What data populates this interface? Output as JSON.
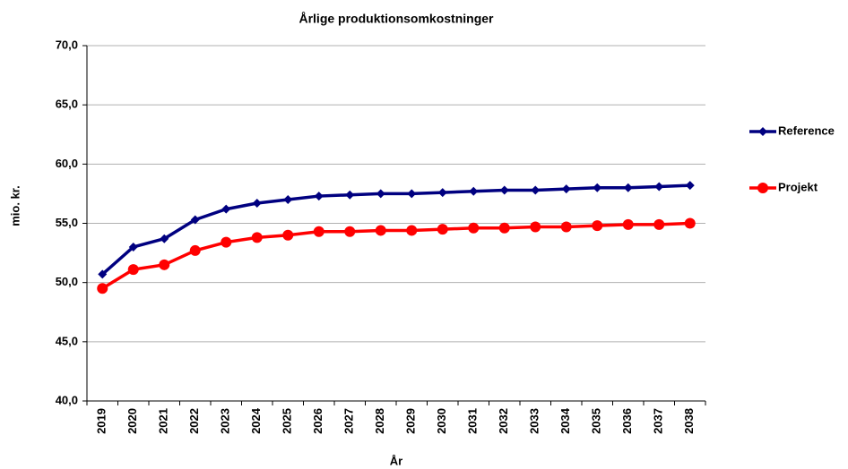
{
  "chart_data": {
    "type": "line",
    "title": "Årlige produktionsomkostninger",
    "x_label": "År",
    "y_label": "mio. kr.",
    "categories": [
      "2019",
      "2020",
      "2021",
      "2022",
      "2023",
      "2024",
      "2025",
      "2026",
      "2027",
      "2028",
      "2029",
      "2030",
      "2031",
      "2032",
      "2033",
      "2034",
      "2035",
      "2036",
      "2037",
      "2038"
    ],
    "series": [
      {
        "name": "Reference",
        "color": "#000080",
        "marker": "diamond",
        "values": [
          50.7,
          53.0,
          53.7,
          55.3,
          56.2,
          56.7,
          57.0,
          57.3,
          57.4,
          57.5,
          57.5,
          57.6,
          57.7,
          57.8,
          57.8,
          57.9,
          58.0,
          58.0,
          58.1,
          58.2
        ]
      },
      {
        "name": "Projekt",
        "color": "#ff0000",
        "marker": "circle",
        "values": [
          49.5,
          51.1,
          51.5,
          52.7,
          53.4,
          53.8,
          54.0,
          54.3,
          54.3,
          54.4,
          54.4,
          54.5,
          54.6,
          54.6,
          54.7,
          54.7,
          54.8,
          54.9,
          54.9,
          55.0
        ]
      }
    ],
    "ylim": [
      40,
      70
    ],
    "yticks": [
      {
        "value": 40,
        "label": "40,0"
      },
      {
        "value": 45,
        "label": "45,0"
      },
      {
        "value": 50,
        "label": "50,0"
      },
      {
        "value": 55,
        "label": "55,0"
      },
      {
        "value": 60,
        "label": "60,0"
      },
      {
        "value": 65,
        "label": "65,0"
      },
      {
        "value": 70,
        "label": "70,0"
      }
    ],
    "grid": true,
    "legend": "right"
  }
}
